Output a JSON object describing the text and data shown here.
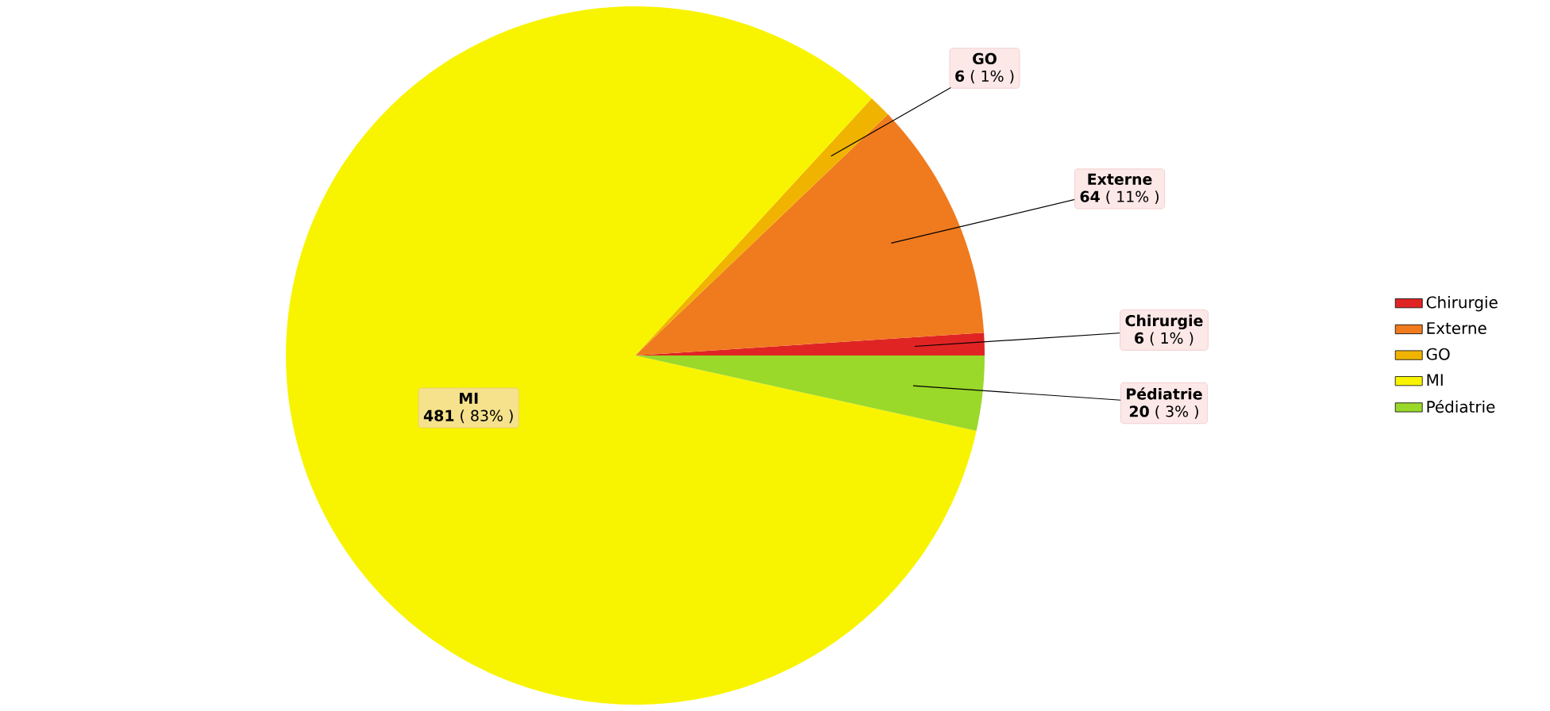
{
  "chart_data": {
    "type": "pie",
    "categories": [
      "Chirurgie",
      "Externe",
      "GO",
      "MI",
      "Pédiatrie"
    ],
    "values": [
      6,
      64,
      6,
      481,
      20
    ],
    "colors": [
      "#e02424",
      "#f07a1e",
      "#f0b400",
      "#f8f400",
      "#9ad82a"
    ],
    "value_labels": [
      "**6** ( 1% )",
      "**64** ( 11% )",
      "**6** ( 1% )",
      "**481** ( 83% )",
      "**20** ( 3% )"
    ],
    "legend": "right"
  }
}
